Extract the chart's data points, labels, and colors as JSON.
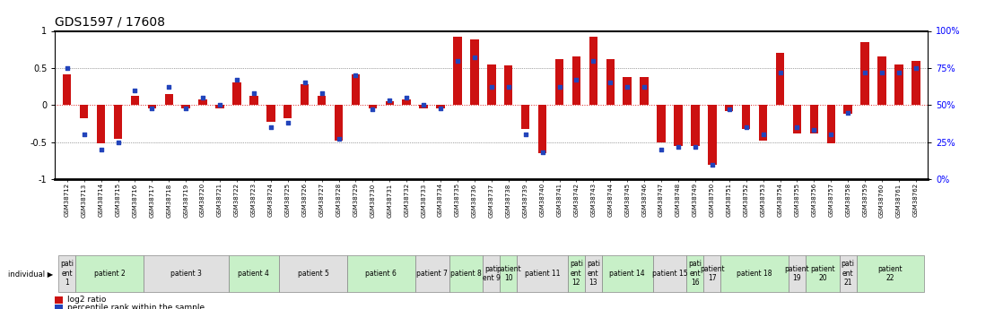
{
  "title": "GDS1597 / 17608",
  "gsm_labels": [
    "GSM38712",
    "GSM38713",
    "GSM38714",
    "GSM38715",
    "GSM38716",
    "GSM38717",
    "GSM38718",
    "GSM38719",
    "GSM38720",
    "GSM38721",
    "GSM38722",
    "GSM38723",
    "GSM38724",
    "GSM38725",
    "GSM38726",
    "GSM38727",
    "GSM38728",
    "GSM38729",
    "GSM38730",
    "GSM38731",
    "GSM38732",
    "GSM38733",
    "GSM38734",
    "GSM38735",
    "GSM38736",
    "GSM38737",
    "GSM38738",
    "GSM38739",
    "GSM38740",
    "GSM38741",
    "GSM38742",
    "GSM38743",
    "GSM38744",
    "GSM38745",
    "GSM38746",
    "GSM38747",
    "GSM38748",
    "GSM38749",
    "GSM38750",
    "GSM38751",
    "GSM38752",
    "GSM38753",
    "GSM38754",
    "GSM38755",
    "GSM38756",
    "GSM38757",
    "GSM38758",
    "GSM38759",
    "GSM38760",
    "GSM38761",
    "GSM38762"
  ],
  "log2_ratio": [
    0.42,
    -0.18,
    -0.52,
    -0.45,
    0.12,
    -0.05,
    0.15,
    -0.05,
    0.08,
    -0.05,
    0.3,
    0.12,
    -0.22,
    -0.18,
    0.28,
    0.12,
    -0.48,
    0.42,
    -0.05,
    0.05,
    0.08,
    -0.05,
    -0.05,
    0.92,
    0.88,
    0.55,
    0.53,
    -0.32,
    -0.65,
    0.62,
    0.65,
    0.92,
    0.62,
    0.38,
    0.38,
    -0.5,
    -0.55,
    -0.55,
    -0.8,
    -0.08,
    -0.32,
    -0.48,
    0.7,
    -0.38,
    -0.38,
    -0.52,
    -0.12,
    0.85,
    0.65,
    0.55,
    0.6
  ],
  "percentile": [
    75,
    30,
    20,
    25,
    60,
    48,
    62,
    48,
    55,
    50,
    67,
    58,
    35,
    38,
    65,
    58,
    27,
    70,
    47,
    53,
    55,
    50,
    48,
    80,
    82,
    62,
    62,
    30,
    18,
    62,
    67,
    80,
    65,
    62,
    62,
    20,
    22,
    22,
    10,
    47,
    35,
    30,
    72,
    35,
    33,
    30,
    45,
    72,
    72,
    72,
    75
  ],
  "patients": [
    {
      "label": "pati\nent\n1",
      "start": 0,
      "end": 1,
      "color": "#e0e0e0"
    },
    {
      "label": "patient 2",
      "start": 1,
      "end": 5,
      "color": "#c8f0c8"
    },
    {
      "label": "patient 3",
      "start": 5,
      "end": 10,
      "color": "#e0e0e0"
    },
    {
      "label": "patient 4",
      "start": 10,
      "end": 13,
      "color": "#c8f0c8"
    },
    {
      "label": "patient 5",
      "start": 13,
      "end": 17,
      "color": "#e0e0e0"
    },
    {
      "label": "patient 6",
      "start": 17,
      "end": 21,
      "color": "#c8f0c8"
    },
    {
      "label": "patient 7",
      "start": 21,
      "end": 23,
      "color": "#e0e0e0"
    },
    {
      "label": "patient 8",
      "start": 23,
      "end": 25,
      "color": "#c8f0c8"
    },
    {
      "label": "pati\nent 9",
      "start": 25,
      "end": 26,
      "color": "#e0e0e0"
    },
    {
      "label": "patient\n10",
      "start": 26,
      "end": 27,
      "color": "#c8f0c8"
    },
    {
      "label": "patient 11",
      "start": 27,
      "end": 30,
      "color": "#e0e0e0"
    },
    {
      "label": "pati\nent\n12",
      "start": 30,
      "end": 31,
      "color": "#c8f0c8"
    },
    {
      "label": "pati\nent\n13",
      "start": 31,
      "end": 32,
      "color": "#e0e0e0"
    },
    {
      "label": "patient 14",
      "start": 32,
      "end": 35,
      "color": "#c8f0c8"
    },
    {
      "label": "patient 15",
      "start": 35,
      "end": 37,
      "color": "#e0e0e0"
    },
    {
      "label": "pati\nent\n16",
      "start": 37,
      "end": 38,
      "color": "#c8f0c8"
    },
    {
      "label": "patient\n17",
      "start": 38,
      "end": 39,
      "color": "#e0e0e0"
    },
    {
      "label": "patient 18",
      "start": 39,
      "end": 43,
      "color": "#c8f0c8"
    },
    {
      "label": "patient\n19",
      "start": 43,
      "end": 44,
      "color": "#e0e0e0"
    },
    {
      "label": "patient\n20",
      "start": 44,
      "end": 46,
      "color": "#c8f0c8"
    },
    {
      "label": "pati\nent\n21",
      "start": 46,
      "end": 47,
      "color": "#e0e0e0"
    },
    {
      "label": "patient\n22",
      "start": 47,
      "end": 51,
      "color": "#c8f0c8"
    }
  ],
  "ylim": [
    -1.0,
    1.0
  ],
  "yticks_left": [
    -1.0,
    -0.5,
    0.0,
    0.5,
    1.0
  ],
  "yticks_right": [
    0,
    25,
    50,
    75,
    100
  ],
  "bar_color": "#cc1111",
  "dot_color": "#2244bb",
  "zero_line_color": "#dd2222",
  "dotted_line_color": "#555555",
  "title_fontsize": 10,
  "tick_fontsize": 5.0,
  "patient_fontsize": 5.5,
  "bar_width": 0.5,
  "dot_size": 10
}
